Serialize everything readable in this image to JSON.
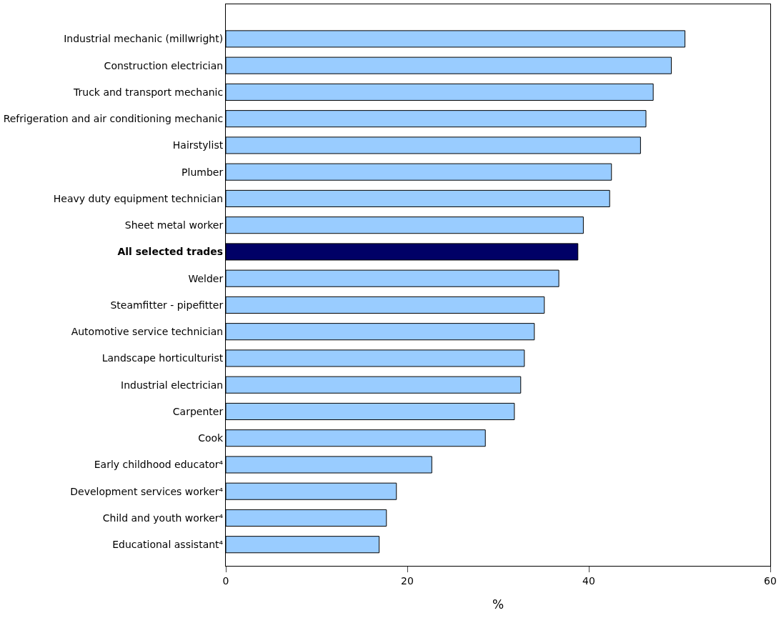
{
  "chart_data": {
    "type": "bar",
    "orientation": "horizontal",
    "xlabel": "%",
    "categories": [
      "Industrial mechanic (millwright)",
      "Construction electrician",
      "Truck and transport mechanic",
      "Refrigeration and air conditioning mechanic",
      "Hairstylist",
      "Plumber",
      "Heavy duty equipment technician",
      "Sheet metal worker",
      "All selected trades",
      "Welder",
      "Steamfitter - pipefitter",
      "Automotive service technician",
      "Landscape horticulturist",
      "Industrial electrician",
      "Carpenter",
      "Cook",
      "Early childhood educator⁴",
      "Development services worker⁴",
      "Child and youth worker⁴",
      "Educational assistant⁴"
    ],
    "values": [
      50.6,
      49.1,
      47.1,
      46.3,
      45.7,
      42.5,
      42.3,
      39.4,
      38.8,
      36.7,
      35.1,
      34.0,
      32.9,
      32.5,
      31.8,
      28.6,
      22.7,
      18.8,
      17.7,
      16.9
    ],
    "colors": [
      "#99ccff",
      "#99ccff",
      "#99ccff",
      "#99ccff",
      "#99ccff",
      "#99ccff",
      "#99ccff",
      "#99ccff",
      "#000066",
      "#99ccff",
      "#99ccff",
      "#99ccff",
      "#99ccff",
      "#99ccff",
      "#99ccff",
      "#99ccff",
      "#99ccff",
      "#99ccff",
      "#99ccff",
      "#99ccff"
    ],
    "xlim": [
      0,
      60
    ],
    "xticks": [
      0,
      20,
      40,
      60
    ]
  }
}
